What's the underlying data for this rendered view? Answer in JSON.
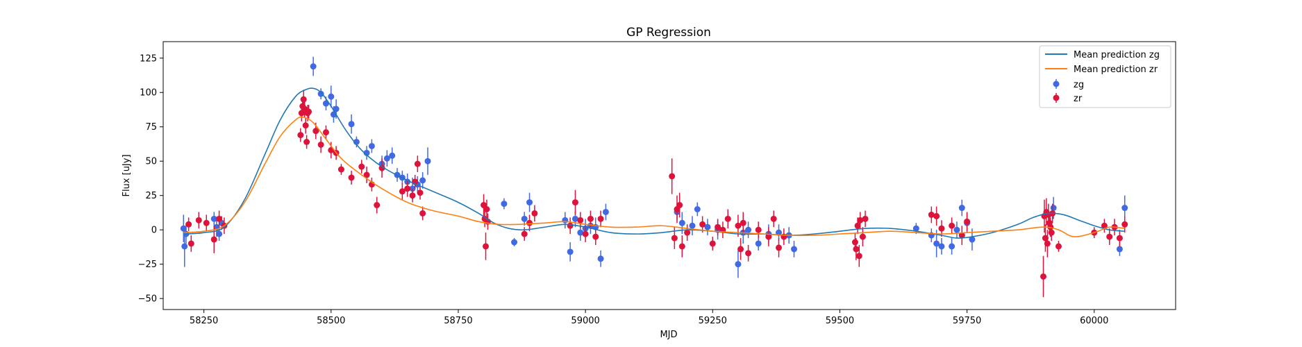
{
  "chart_data": {
    "type": "scatter",
    "title": "GP Regression",
    "xlabel": "MJD",
    "ylabel": "Flux [uJy]",
    "xlim": [
      58170,
      60160
    ],
    "ylim": [
      -58,
      137
    ],
    "xticks": [
      58250,
      58500,
      58750,
      59000,
      59250,
      59500,
      59750,
      60000
    ],
    "yticks": [
      -50,
      -25,
      0,
      25,
      50,
      75,
      100,
      125
    ],
    "legend_position": "top-right",
    "grid": false,
    "series": [
      {
        "name": "Mean prediction zg",
        "kind": "line",
        "color": "#1f77b4",
        "x": [
          58210,
          58250,
          58290,
          58330,
          58370,
          58400,
          58430,
          58450,
          58465,
          58480,
          58500,
          58530,
          58560,
          58600,
          58650,
          58700,
          58750,
          58790,
          58820,
          58850,
          58880,
          58920,
          58960,
          59000,
          59050,
          59100,
          59150,
          59200,
          59250,
          59300,
          59350,
          59400,
          59450,
          59500,
          59550,
          59600,
          59650,
          59700,
          59730,
          59760,
          59800,
          59850,
          59880,
          59910,
          59940,
          59970,
          60000,
          60030,
          60060
        ],
        "y": [
          -3,
          -2,
          2,
          22,
          55,
          80,
          97,
          102,
          103,
          100,
          90,
          72,
          58,
          46,
          36,
          28,
          20,
          12,
          5,
          1,
          0,
          2,
          4,
          2,
          -2,
          -3,
          -2,
          0,
          -1,
          -3,
          -3,
          -4,
          -3,
          -1,
          1,
          1,
          -1,
          -4,
          -6,
          -5,
          -2,
          4,
          9,
          12,
          11,
          7,
          3,
          0,
          -1
        ]
      },
      {
        "name": "Mean prediction zr",
        "kind": "line",
        "color": "#ff7f0e",
        "x": [
          58210,
          58250,
          58290,
          58330,
          58370,
          58400,
          58430,
          58445,
          58465,
          58490,
          58520,
          58560,
          58600,
          58650,
          58700,
          58750,
          58790,
          58830,
          58870,
          58920,
          58960,
          59000,
          59050,
          59100,
          59150,
          59200,
          59250,
          59300,
          59350,
          59400,
          59450,
          59500,
          59550,
          59600,
          59650,
          59700,
          59750,
          59800,
          59850,
          59900,
          59930,
          59960,
          60000,
          60030,
          60060
        ],
        "y": [
          -2,
          -1,
          3,
          20,
          48,
          68,
          80,
          82,
          78,
          66,
          52,
          40,
          30,
          20,
          14,
          10,
          6,
          4,
          4,
          5,
          6,
          4,
          2,
          2,
          3,
          1,
          -1,
          -2,
          -3,
          -4,
          -4,
          -3,
          -2,
          -1,
          -2,
          -3,
          -2,
          -1,
          0,
          2,
          0,
          -5,
          -2,
          2,
          1
        ]
      },
      {
        "name": "zg",
        "kind": "errorbar",
        "color": "#4169e1",
        "x": [
          58210,
          58212,
          58215,
          58270,
          58275,
          58280,
          58285,
          58465,
          58480,
          58490,
          58500,
          58505,
          58510,
          58540,
          58550,
          58570,
          58580,
          58600,
          58610,
          58620,
          58630,
          58640,
          58650,
          58660,
          58670,
          58680,
          58690,
          58840,
          58860,
          58880,
          58890,
          58960,
          58970,
          58980,
          58990,
          59000,
          59010,
          59020,
          59030,
          59040,
          59180,
          59190,
          59210,
          59220,
          59240,
          59260,
          59300,
          59310,
          59320,
          59340,
          59360,
          59380,
          59400,
          59410,
          59650,
          59680,
          59690,
          59700,
          59720,
          59730,
          59740,
          59750,
          59760,
          59920,
          60050,
          60060
        ],
        "y": [
          1,
          -12,
          -3,
          8,
          2,
          -3,
          5,
          119,
          99,
          92,
          97,
          84,
          88,
          77,
          64,
          56,
          61,
          48,
          52,
          54,
          40,
          38,
          35,
          30,
          33,
          36,
          50,
          19,
          -9,
          8,
          20,
          7,
          -16,
          8,
          -2,
          1,
          3,
          2,
          -21,
          13,
          13,
          5,
          3,
          15,
          2,
          0,
          -25,
          -2,
          0,
          -10,
          -3,
          -2,
          -4,
          -14,
          1,
          -4,
          -10,
          -12,
          -12,
          0,
          16,
          5,
          -7,
          16,
          -14,
          16
        ],
        "err": [
          10,
          15,
          7,
          5,
          7,
          5,
          5,
          7,
          4,
          5,
          8,
          6,
          7,
          7,
          4,
          5,
          5,
          6,
          6,
          6,
          5,
          5,
          6,
          8,
          6,
          6,
          10,
          4,
          3,
          5,
          7,
          6,
          7,
          6,
          6,
          7,
          6,
          7,
          6,
          6,
          6,
          8,
          7,
          5,
          6,
          7,
          10,
          8,
          6,
          5,
          7,
          6,
          6,
          6,
          4,
          5,
          10,
          6,
          6,
          6,
          6,
          7,
          8,
          8,
          5,
          9
        ]
      },
      {
        "name": "zr",
        "kind": "errorbar",
        "color": "#dc143c",
        "x": [
          58220,
          58225,
          58240,
          58255,
          58270,
          58280,
          58290,
          58440,
          58442,
          58444,
          58446,
          58448,
          58450,
          58452,
          58454,
          58456,
          58470,
          58480,
          58490,
          58500,
          58510,
          58520,
          58540,
          58560,
          58570,
          58580,
          58590,
          58600,
          58640,
          58650,
          58660,
          58665,
          58670,
          58675,
          58680,
          58800,
          58802,
          58804,
          58806,
          58808,
          58880,
          58890,
          58900,
          58970,
          58980,
          58990,
          59000,
          59010,
          59020,
          59030,
          59170,
          59175,
          59180,
          59185,
          59190,
          59200,
          59230,
          59250,
          59260,
          59270,
          59280,
          59300,
          59305,
          59310,
          59320,
          59340,
          59360,
          59370,
          59380,
          59390,
          59530,
          59532,
          59535,
          59538,
          59540,
          59545,
          59550,
          59680,
          59690,
          59700,
          59720,
          59740,
          59750,
          59900,
          59902,
          59904,
          59906,
          59908,
          59910,
          59912,
          59914,
          59916,
          59918,
          59930,
          60000,
          60020,
          60030,
          60040,
          60050,
          60060
        ],
        "y": [
          4,
          -10,
          7,
          5,
          -7,
          8,
          3,
          69,
          85,
          90,
          95,
          88,
          76,
          64,
          85,
          86,
          72,
          62,
          71,
          58,
          56,
          44,
          38,
          46,
          40,
          33,
          18,
          45,
          28,
          30,
          25,
          35,
          48,
          27,
          12,
          18,
          8,
          -12,
          15,
          6,
          -3,
          5,
          12,
          3,
          20,
          7,
          -3,
          8,
          -5,
          8,
          39,
          -6,
          15,
          18,
          -12,
          -2,
          4,
          -10,
          2,
          0,
          8,
          3,
          -14,
          5,
          -17,
          0,
          -5,
          8,
          -13,
          -5,
          -9,
          -14,
          3,
          -19,
          7,
          -5,
          8,
          11,
          10,
          1,
          3,
          -4,
          6,
          -34,
          10,
          -6,
          13,
          -10,
          11,
          5,
          2,
          -2,
          12,
          -12,
          -2,
          3,
          -5,
          2,
          -6,
          4
        ],
        "err": [
          5,
          6,
          6,
          6,
          10,
          6,
          6,
          5,
          6,
          6,
          7,
          6,
          6,
          5,
          6,
          5,
          6,
          6,
          5,
          6,
          5,
          4,
          5,
          5,
          6,
          5,
          6,
          7,
          6,
          6,
          5,
          5,
          6,
          5,
          5,
          8,
          6,
          10,
          7,
          6,
          5,
          6,
          6,
          6,
          9,
          6,
          6,
          6,
          6,
          6,
          13,
          8,
          10,
          9,
          8,
          6,
          6,
          5,
          6,
          6,
          7,
          8,
          8,
          8,
          6,
          6,
          7,
          6,
          7,
          6,
          7,
          8,
          6,
          8,
          6,
          7,
          6,
          6,
          7,
          6,
          6,
          7,
          7,
          15,
          12,
          10,
          10,
          10,
          8,
          8,
          7,
          6,
          7,
          4,
          4,
          5,
          6,
          6,
          6,
          6
        ]
      }
    ]
  }
}
